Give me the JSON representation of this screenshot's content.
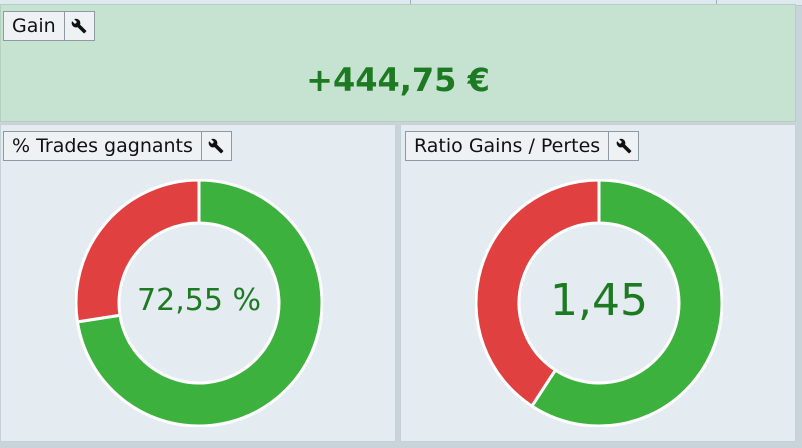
{
  "gain": {
    "label": "Gain",
    "value": "+444,75 €"
  },
  "win_rate": {
    "label": "% Trades gagnants",
    "value_text": "72,55 %",
    "fraction": 0.7255
  },
  "ratio": {
    "label": "Ratio Gains / Pertes",
    "value_text": "1,45",
    "value": 1.45,
    "fraction": 0.5918
  },
  "colors": {
    "win": "#3db13d",
    "loss": "#e04040",
    "value_text": "#1d7a22",
    "gain_bg": "#c6e3d1",
    "panel_bg": "#e4ecf1"
  },
  "icons": {
    "settings": "wrench-icon"
  }
}
